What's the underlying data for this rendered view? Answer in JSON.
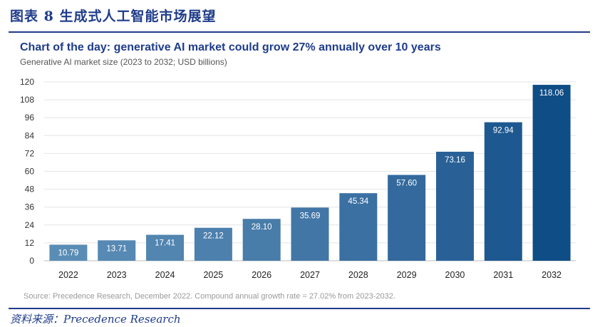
{
  "figure": {
    "title": "图表 8   生成式人工智能市场展望",
    "source_label": "资料来源：Precedence Research"
  },
  "chart_data": {
    "type": "bar",
    "title": "Chart of the day: generative AI market could grow 27% annually over 10 years",
    "subtitle": "Generative AI market size (2023 to 2032; USD billions)",
    "categories": [
      "2022",
      "2023",
      "2024",
      "2025",
      "2026",
      "2027",
      "2028",
      "2029",
      "2030",
      "2031",
      "2032"
    ],
    "values": [
      10.79,
      13.71,
      17.41,
      22.12,
      28.1,
      35.69,
      45.34,
      57.6,
      73.16,
      92.94,
      118.06
    ],
    "value_labels": [
      "10.79",
      "13.71",
      "17.41",
      "22.12",
      "28.10",
      "35.69",
      "45.34",
      "57.60",
      "73.16",
      "92.94",
      "118.06"
    ],
    "ylim": [
      0,
      120
    ],
    "yticks": [
      0,
      12,
      24,
      36,
      48,
      60,
      72,
      84,
      96,
      108,
      120
    ],
    "grid": true,
    "bar_colors": [
      "#5a8db5",
      "#5689b3",
      "#5285b0",
      "#4d80ad",
      "#487ca9",
      "#4276a6",
      "#3b70a2",
      "#33699d",
      "#296197",
      "#1e5890",
      "#0f4d86"
    ],
    "note": "Source: Precedence Research, December 2022. Compound annual growth rate = 27.02% from 2023-2032."
  }
}
